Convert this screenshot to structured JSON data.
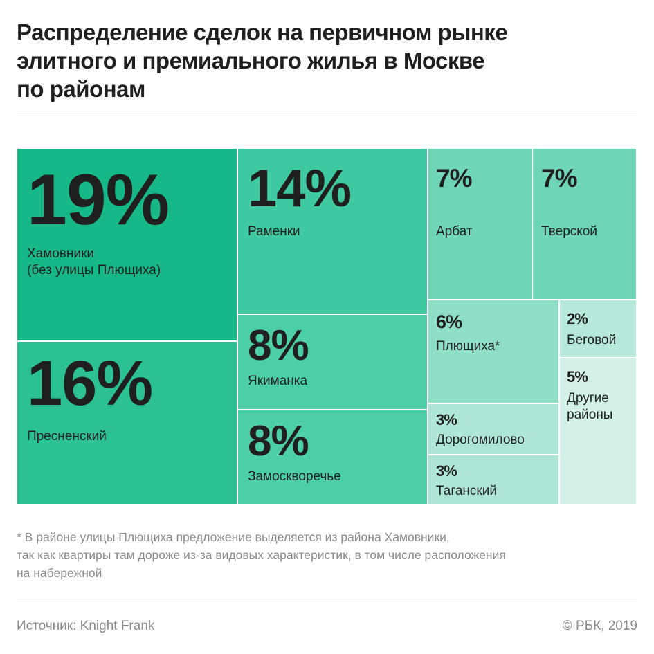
{
  "title_lines": [
    "Распределение сделок на первичном рынке",
    "элитного и премиального жилья в Москве",
    "по районам"
  ],
  "chart_data": {
    "type": "treemap",
    "title": "Распределение сделок на первичном рынке элитного и премиального жилья в Москве по районам",
    "unit": "%",
    "items": [
      {
        "label": "Хамовники (без улицы Плющиха)",
        "label_lines": [
          "Хамовники",
          "(без улицы Плющиха)"
        ],
        "value": 19,
        "display": "19%",
        "color": "#17b888"
      },
      {
        "label": "Пресненский",
        "label_lines": [
          "Пресненский"
        ],
        "value": 16,
        "display": "16%",
        "color": "#2bc193"
      },
      {
        "label": "Раменки",
        "label_lines": [
          "Раменки"
        ],
        "value": 14,
        "display": "14%",
        "color": "#3fc9a0"
      },
      {
        "label": "Якиманка",
        "label_lines": [
          "Якиманка"
        ],
        "value": 8,
        "display": "8%",
        "color": "#4ccea7"
      },
      {
        "label": "Замоскворечье",
        "label_lines": [
          "Замоскворечье"
        ],
        "value": 8,
        "display": "8%",
        "color": "#4ccea7"
      },
      {
        "label": "Арбат",
        "label_lines": [
          "Арбат"
        ],
        "value": 7,
        "display": "7%",
        "color": "#6fd5b7"
      },
      {
        "label": "Тверской",
        "label_lines": [
          "Тверской"
        ],
        "value": 7,
        "display": "7%",
        "color": "#6fd5b7"
      },
      {
        "label": "Плющиха*",
        "label_lines": [
          "Плющиха*"
        ],
        "value": 6,
        "display": "6%",
        "color": "#8fdec6"
      },
      {
        "label": "Дорогомилово",
        "label_lines": [
          "Дорогомилово"
        ],
        "value": 3,
        "display": "3%",
        "color": "#ade6d4"
      },
      {
        "label": "Таганский",
        "label_lines": [
          "Таганский"
        ],
        "value": 3,
        "display": "3%",
        "color": "#ade6d4"
      },
      {
        "label": "Беговой",
        "label_lines": [
          "Беговой"
        ],
        "value": 2,
        "display": "2%",
        "color": "#b6e9d9"
      },
      {
        "label": "Другие районы",
        "label_lines": [
          "Другие",
          "районы"
        ],
        "value": 5,
        "display": "5%",
        "color": "#d3f1e7"
      }
    ]
  },
  "footnote_lines": [
    "* В районе улицы Плющиха предложение выделяется из района Хамовники,",
    "так как квартиры там дороже из-за видовых характеристик, в том числе расположения",
    "на набережной"
  ],
  "source": "Источник: Knight Frank",
  "copyright": "© РБК, 2019",
  "colors": {
    "text": "#1f1f1f",
    "muted": "#8a8a8a",
    "rule": "#d9d9d9",
    "cell_border": "#ffffff"
  }
}
